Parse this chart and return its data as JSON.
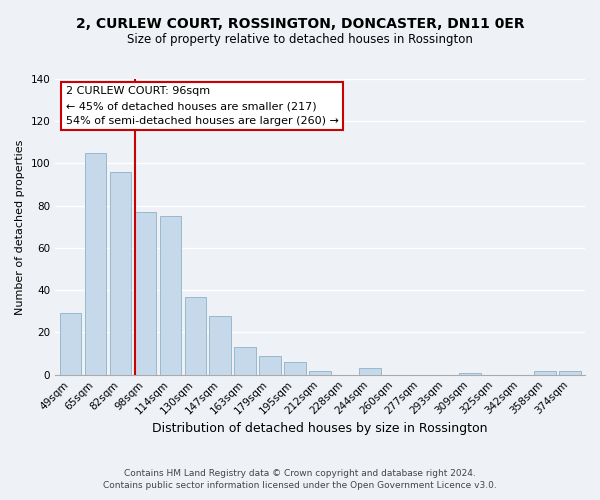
{
  "title1": "2, CURLEW COURT, ROSSINGTON, DONCASTER, DN11 0ER",
  "title2": "Size of property relative to detached houses in Rossington",
  "xlabel": "Distribution of detached houses by size in Rossington",
  "ylabel": "Number of detached properties",
  "categories": [
    "49sqm",
    "65sqm",
    "82sqm",
    "98sqm",
    "114sqm",
    "130sqm",
    "147sqm",
    "163sqm",
    "179sqm",
    "195sqm",
    "212sqm",
    "228sqm",
    "244sqm",
    "260sqm",
    "277sqm",
    "293sqm",
    "309sqm",
    "325sqm",
    "342sqm",
    "358sqm",
    "374sqm"
  ],
  "values": [
    29,
    105,
    96,
    77,
    75,
    37,
    28,
    13,
    9,
    6,
    2,
    0,
    3,
    0,
    0,
    0,
    1,
    0,
    0,
    2,
    2
  ],
  "bar_color": "#c6d9ea",
  "bar_edge_color": "#9ab8cc",
  "highlight_index": 3,
  "highlight_line_color": "#cc0000",
  "ylim": [
    0,
    140
  ],
  "yticks": [
    0,
    20,
    40,
    60,
    80,
    100,
    120,
    140
  ],
  "annotation_title": "2 CURLEW COURT: 96sqm",
  "annotation_line1": "← 45% of detached houses are smaller (217)",
  "annotation_line2": "54% of semi-detached houses are larger (260) →",
  "annotation_box_facecolor": "#ffffff",
  "annotation_box_edgecolor": "#cc0000",
  "footer1": "Contains HM Land Registry data © Crown copyright and database right 2024.",
  "footer2": "Contains public sector information licensed under the Open Government Licence v3.0.",
  "background_color": "#eef2f7",
  "plot_background": "#eef2f7",
  "grid_color": "#ffffff",
  "title1_fontsize": 10,
  "title2_fontsize": 8.5,
  "xlabel_fontsize": 9,
  "ylabel_fontsize": 8,
  "tick_fontsize": 7.5,
  "annotation_fontsize": 8,
  "footer_fontsize": 6.5
}
